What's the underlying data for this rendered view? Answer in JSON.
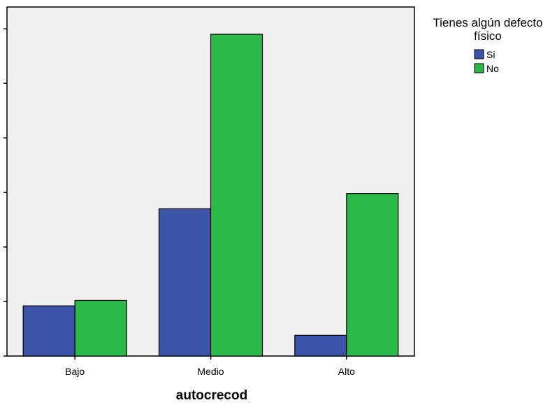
{
  "chart_data": {
    "type": "bar",
    "categories": [
      "Bajo",
      "Medio",
      "Alto"
    ],
    "series": [
      {
        "name": "Si",
        "values": [
          4.6,
          13.5,
          1.9
        ],
        "color": "#3b54a8"
      },
      {
        "name": "No",
        "values": [
          5.1,
          29.5,
          14.9
        ],
        "color": "#2db84a"
      }
    ],
    "xlabel": "autocrecod",
    "ylabel": "",
    "ylim": [
      0,
      32
    ],
    "y_ticks": [
      0,
      5,
      10,
      15,
      20,
      25,
      30
    ],
    "y_tick_labels_visible": false,
    "legend": {
      "title_lines": [
        "Tienes algún defecto",
        "físico"
      ],
      "placement": "top-right-outside"
    },
    "plot_background": "#f0f0f0",
    "grid": false
  }
}
